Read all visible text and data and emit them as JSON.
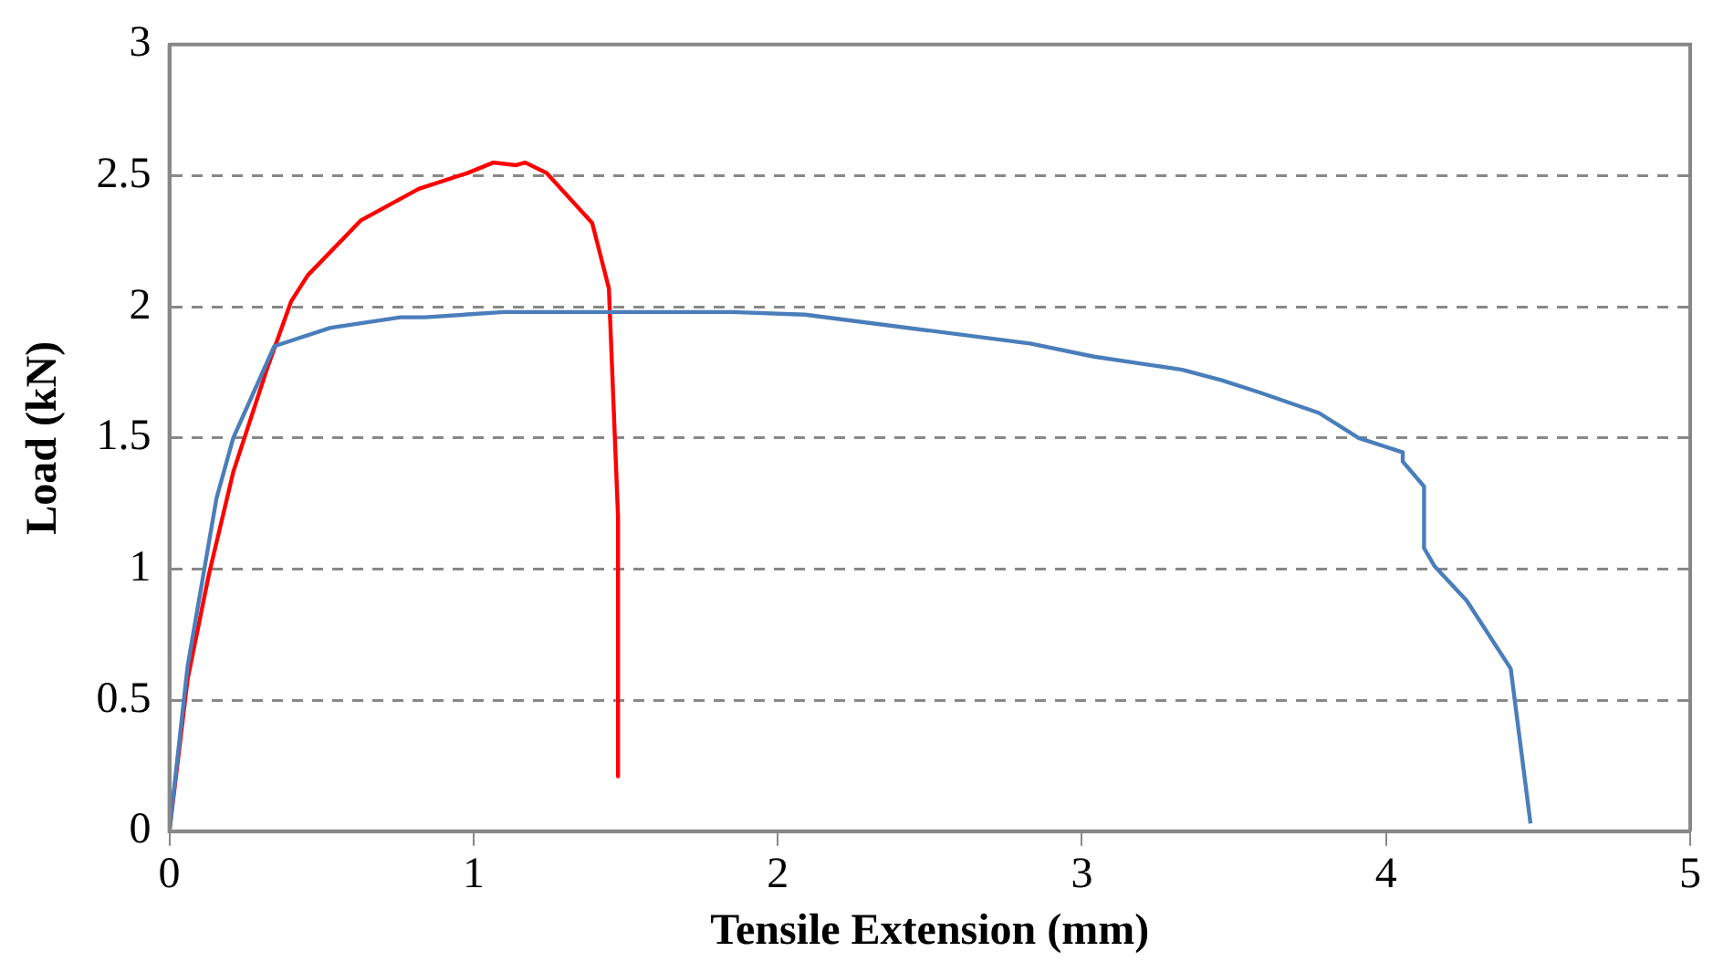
{
  "chart_data": {
    "type": "line",
    "xlabel": "Tensile Extension (mm)",
    "ylabel": "Load (kN)",
    "xlim": [
      0,
      5
    ],
    "xticks": [
      0,
      1,
      2,
      3,
      4,
      5
    ],
    "ylim": [
      0,
      3
    ],
    "yticks": [
      0,
      0.5,
      1,
      1.5,
      2,
      2.5,
      3
    ],
    "grid": "y",
    "legend": false,
    "marker": "none",
    "line_style": "solid",
    "series": [
      {
        "color": "#4a7ebb",
        "x": [
          0,
          0.06,
          0.155,
          0.21,
          0.345,
          0.53,
          0.76,
          0.84,
          1.1,
          1.85,
          2.09,
          2.83,
          3.04,
          3.33,
          3.46,
          3.58,
          3.78,
          3.91,
          4.055,
          4.055,
          4.125,
          4.125,
          4.16,
          4.265,
          4.41,
          4.475
        ],
        "values": [
          0,
          0.63,
          1.27,
          1.5,
          1.85,
          1.92,
          1.96,
          1.96,
          1.98,
          1.98,
          1.97,
          1.86,
          1.81,
          1.76,
          1.72,
          1.675,
          1.595,
          1.5,
          1.445,
          1.41,
          1.315,
          1.08,
          1.01,
          0.88,
          0.62,
          0.03
        ]
      },
      {
        "color": "#ff0000",
        "x": [
          0,
          0.06,
          0.13,
          0.21,
          0.32,
          0.4,
          0.455,
          0.63,
          0.82,
          0.98,
          1.065,
          1.14,
          1.17,
          1.24,
          1.39,
          1.445,
          1.475,
          1.475
        ],
        "values": [
          0,
          0.58,
          0.98,
          1.37,
          1.76,
          2.02,
          2.12,
          2.33,
          2.45,
          2.51,
          2.55,
          2.54,
          2.55,
          2.51,
          2.32,
          2.07,
          1.2,
          0.21
        ]
      }
    ]
  }
}
